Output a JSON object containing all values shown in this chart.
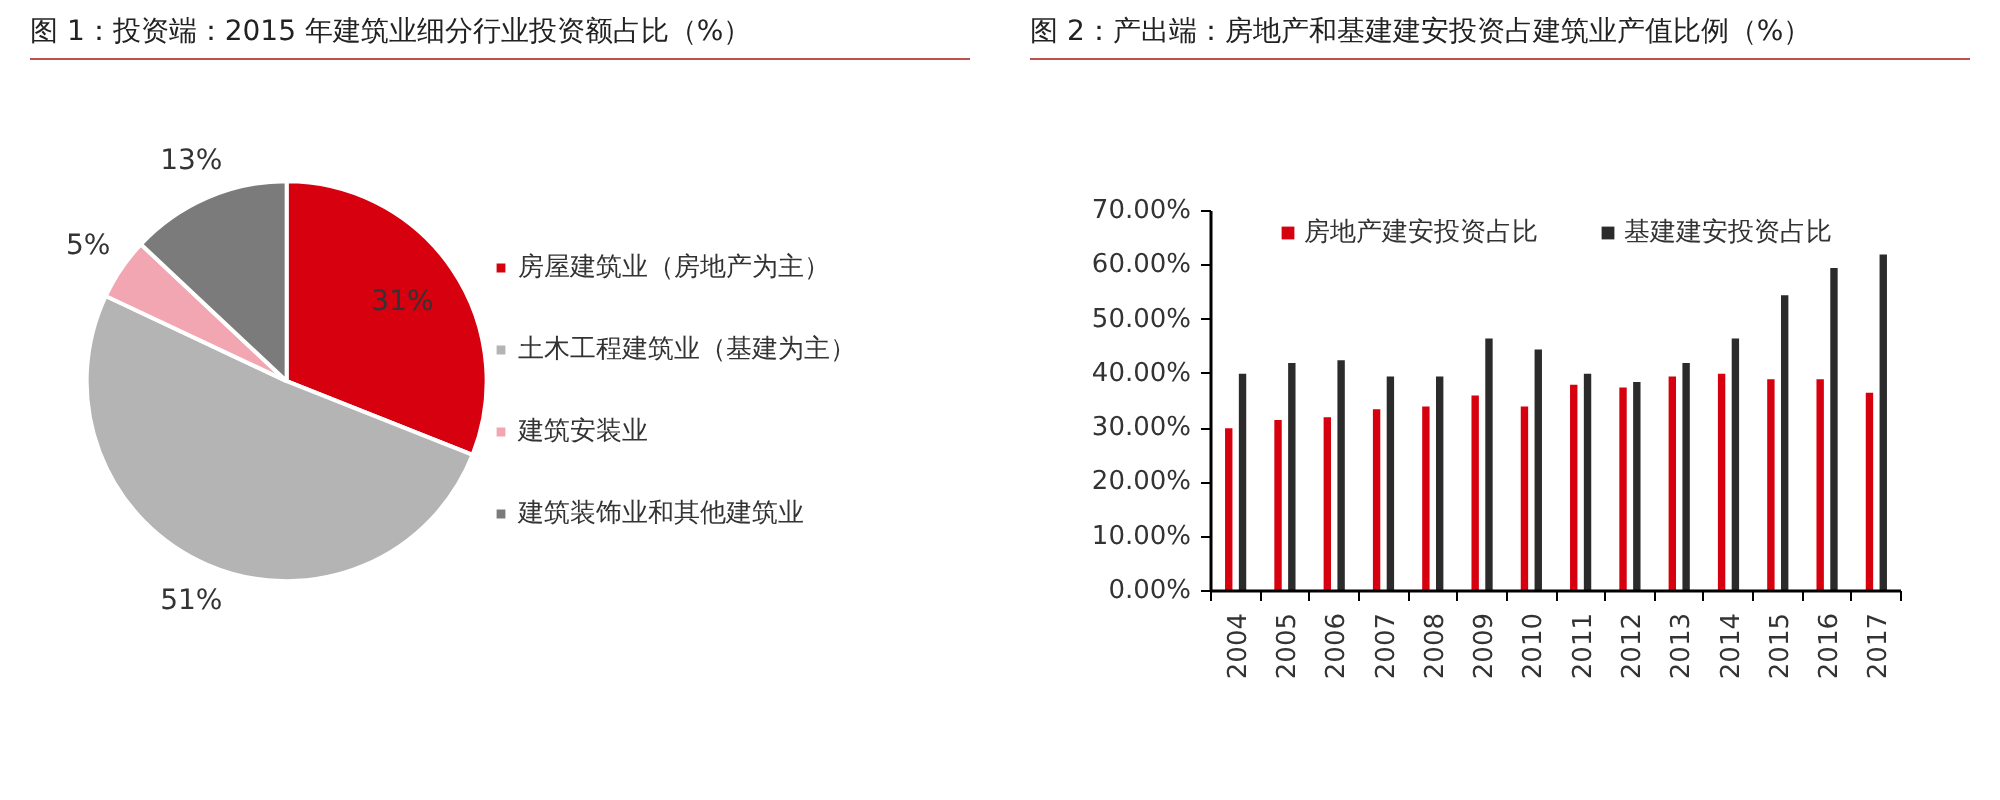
{
  "chart_data": [
    {
      "type": "pie",
      "title": "图 1：投资端：2015 年建筑业细分行业投资额占比（%）",
      "categories": [
        "房屋建筑业（房地产为主）",
        "土木工程建筑业（基建为主）",
        "建筑安装业",
        "建筑装饰业和其他建筑业"
      ],
      "values": [
        31,
        51,
        5,
        13
      ],
      "colors": [
        "#d7000f",
        "#b4b4b4",
        "#f2a6b2",
        "#7b7b7b"
      ],
      "value_labels": [
        "31%",
        "51%",
        "5%",
        "13%"
      ],
      "legend": "right"
    },
    {
      "type": "bar",
      "title": "图 2：产出端：房地产和基建建安投资占建筑业产值比例（%）",
      "categories": [
        "2004",
        "2005",
        "2006",
        "2007",
        "2008",
        "2009",
        "2010",
        "2011",
        "2012",
        "2013",
        "2014",
        "2015",
        "2016",
        "2017"
      ],
      "series": [
        {
          "name": "房地产建安投资占比",
          "color": "#d7000f",
          "values": [
            30,
            31.5,
            32,
            33.5,
            34,
            36,
            34,
            38,
            37.5,
            39.5,
            40,
            39,
            39,
            36.5
          ]
        },
        {
          "name": "基建建安投资占比",
          "color": "#2b2b2b",
          "values": [
            40,
            42,
            42.5,
            39.5,
            39.5,
            46.5,
            44.5,
            40,
            38.5,
            42,
            46.5,
            54.5,
            59.5,
            62
          ]
        }
      ],
      "ylim": [
        0,
        70
      ],
      "yticks": [
        {
          "value": 0,
          "label": "0.00%"
        },
        {
          "value": 10,
          "label": "10.00%"
        },
        {
          "value": 20,
          "label": "20.00%"
        },
        {
          "value": 30,
          "label": "30.00%"
        },
        {
          "value": 40,
          "label": "40.00%"
        },
        {
          "value": 50,
          "label": "50.00%"
        },
        {
          "value": 60,
          "label": "60.00%"
        },
        {
          "value": 70,
          "label": "70.00%"
        }
      ],
      "legend": "top"
    }
  ]
}
